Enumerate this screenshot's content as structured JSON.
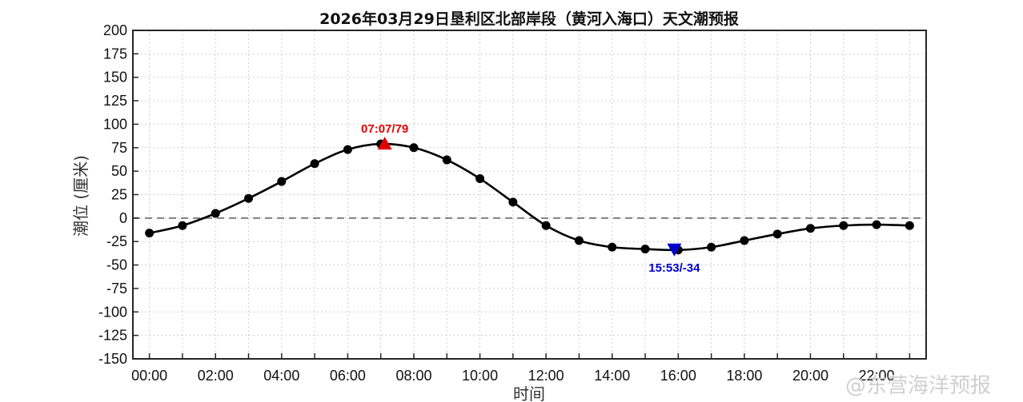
{
  "chart_data": {
    "type": "line",
    "title": "2026年03月29日垦利区北部岸段（黄河入海口）天文潮预报",
    "xlabel": "时间",
    "ylabel": "潮位 (厘米)",
    "xlim": [
      -0.5,
      23.5
    ],
    "ylim": [
      -150,
      200
    ],
    "y_ticks": [
      "200",
      "175",
      "150",
      "125",
      "100",
      "75",
      "50",
      "25",
      "0",
      "-25",
      "-50",
      "-75",
      "-100",
      "-125",
      "-150"
    ],
    "x_ticks": [
      "00:00",
      "02:00",
      "04:00",
      "06:00",
      "08:00",
      "10:00",
      "12:00",
      "14:00",
      "16:00",
      "18:00",
      "20:00",
      "22:00"
    ],
    "grid": true,
    "zero_line": true,
    "x": [
      0,
      1,
      2,
      3,
      4,
      5,
      6,
      7,
      8,
      9,
      10,
      11,
      12,
      13,
      14,
      15,
      16,
      17,
      18,
      19,
      20,
      21,
      22,
      23
    ],
    "values": [
      -16,
      -8,
      5,
      21,
      39,
      58,
      73,
      79,
      75,
      62,
      42,
      17,
      -8,
      -24,
      -31,
      -33,
      -34,
      -31,
      -24,
      -17,
      -11,
      -8,
      -7,
      -8
    ],
    "high": {
      "x": 7.12,
      "y": 79,
      "label": "07:07/79",
      "color": "#e00000"
    },
    "low": {
      "x": 15.88,
      "y": -34,
      "label": "15:53/-34",
      "color": "#0000cc"
    }
  },
  "watermark": "@东营海洋预报",
  "colors": {
    "line": "#000000",
    "grid": "#d0d0d0",
    "zero": "#808080"
  }
}
